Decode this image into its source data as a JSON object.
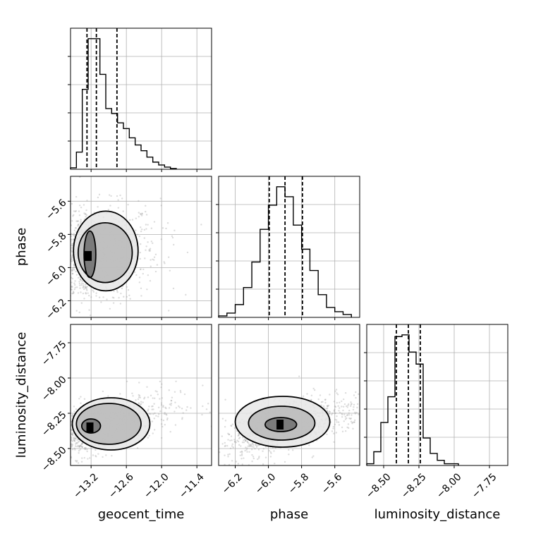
{
  "chart_data": {
    "type": "corner",
    "parameters": [
      "geocent_time",
      "phase",
      "luminosity_distance"
    ],
    "axes": {
      "geocent_time": {
        "range": [
          -13.55,
          -11.15
        ],
        "ticks": [
          -13.2,
          -12.6,
          -12.0,
          -11.4
        ],
        "tick_labels": [
          "−13.2",
          "−12.6",
          "−12.0",
          "−11.4"
        ]
      },
      "phase": {
        "range": [
          -6.3,
          -5.45
        ],
        "ticks": [
          -6.2,
          -6.0,
          -5.8,
          -5.6
        ],
        "tick_labels": [
          "−6.2",
          "−6.0",
          "−5.8",
          "−5.6"
        ]
      },
      "luminosity_distance": {
        "range": [
          -8.62,
          -7.62
        ],
        "ticks": [
          -8.5,
          -8.25,
          -8.0,
          -7.75
        ],
        "tick_labels": [
          "−8.50",
          "−8.25",
          "−8.00",
          "−7.75"
        ]
      }
    },
    "grid": true,
    "histograms": [
      {
        "param": "geocent_time",
        "bin_edges": [
          -13.55,
          -13.45,
          -13.35,
          -13.25,
          -13.15,
          -13.05,
          -12.95,
          -12.85,
          -12.75,
          -12.65,
          -12.55,
          -12.45,
          -12.35,
          -12.25,
          -12.15,
          -12.05,
          -11.95,
          -11.85,
          -11.75
        ],
        "counts": [
          2,
          24,
          112,
          183,
          183,
          133,
          85,
          78,
          65,
          57,
          44,
          34,
          26,
          17,
          10,
          6,
          3,
          1
        ],
        "quantiles": [
          -13.27,
          -13.11,
          -12.76
        ]
      },
      {
        "param": "phase",
        "bin_edges": [
          -6.3,
          -6.25,
          -6.2,
          -6.15,
          -6.1,
          -6.05,
          -6.0,
          -5.95,
          -5.9,
          -5.85,
          -5.8,
          -5.75,
          -5.7,
          -5.65,
          -5.6,
          -5.55,
          -5.5
        ],
        "counts": [
          1,
          3,
          9,
          21,
          39,
          62,
          79,
          92,
          85,
          65,
          48,
          33,
          16,
          7,
          4,
          2
        ],
        "quantiles": [
          -5.995,
          -5.9,
          -5.795
        ]
      },
      {
        "param": "luminosity_distance",
        "bin_edges": [
          -8.62,
          -8.57,
          -8.52,
          -8.47,
          -8.42,
          -8.37,
          -8.32,
          -8.27,
          -8.22,
          -8.17,
          -8.12,
          -8.07,
          -8.02,
          -7.97
        ],
        "counts": [
          1,
          8,
          25,
          40,
          75,
          76,
          66,
          59,
          16,
          7,
          3,
          1,
          1
        ],
        "quantiles": [
          -8.41,
          -8.325,
          -8.24
        ]
      }
    ],
    "scatter_pairs": [
      {
        "x": "geocent_time",
        "y": "phase",
        "density_center": [
          -13.25,
          -5.93
        ],
        "levels": [
          {
            "name": "inner",
            "x_range": [
              -13.32,
              -13.12
            ],
            "y_range": [
              -6.06,
              -5.78
            ]
          },
          {
            "name": "middle",
            "x_range": [
              -13.42,
              -12.5
            ],
            "y_range": [
              -6.09,
              -5.73
            ]
          },
          {
            "name": "outer",
            "x_range": [
              -13.5,
              -12.4
            ],
            "y_range": [
              -6.14,
              -5.66
            ]
          }
        ]
      },
      {
        "x": "geocent_time",
        "y": "luminosity_distance",
        "density_center": [
          -13.22,
          -8.35
        ],
        "levels": [
          {
            "name": "inner",
            "x_range": [
              -13.36,
              -13.04
            ],
            "y_range": [
              -8.39,
              -8.29
            ]
          },
          {
            "name": "middle",
            "x_range": [
              -13.45,
              -12.35
            ],
            "y_range": [
              -8.47,
              -8.18
            ]
          },
          {
            "name": "outer",
            "x_range": [
              -13.52,
              -12.2
            ],
            "y_range": [
              -8.51,
              -8.14
            ]
          }
        ]
      },
      {
        "x": "phase",
        "y": "luminosity_distance",
        "density_center": [
          -5.93,
          -8.33
        ],
        "levels": [
          {
            "name": "inner",
            "x_range": [
              -6.02,
              -5.83
            ],
            "y_range": [
              -8.38,
              -8.28
            ]
          },
          {
            "name": "middle",
            "x_range": [
              -6.12,
              -5.72
            ],
            "y_range": [
              -8.44,
              -8.2
            ]
          },
          {
            "name": "outer",
            "x_range": [
              -6.2,
              -5.63
            ],
            "y_range": [
              -8.49,
              -8.13
            ]
          }
        ]
      }
    ]
  }
}
